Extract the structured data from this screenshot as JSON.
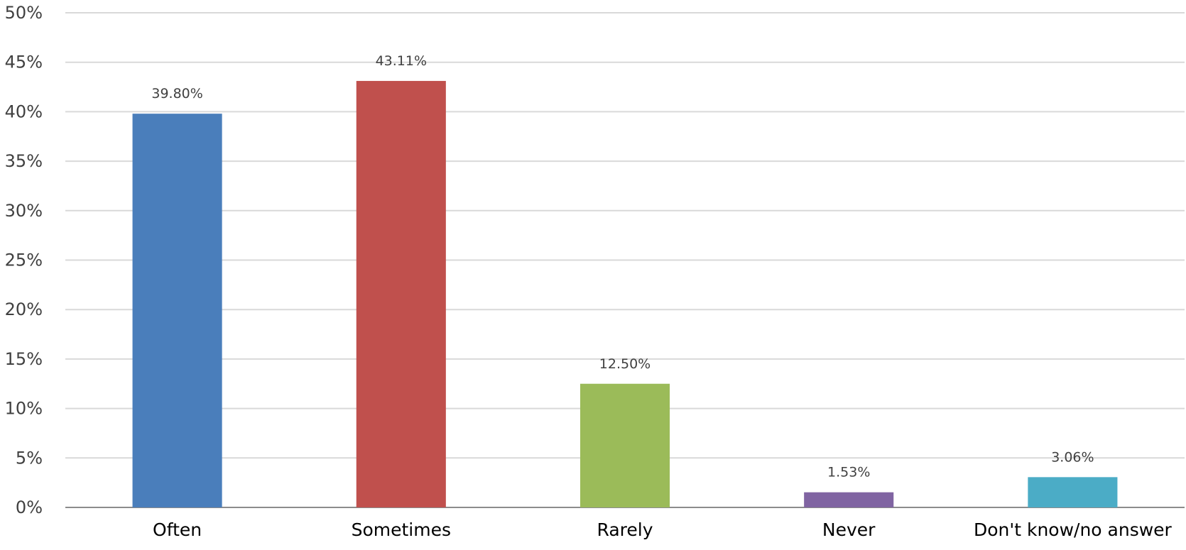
{
  "chart_data": {
    "type": "bar",
    "categories": [
      "Often",
      "Sometimes",
      "Rarely",
      "Never",
      "Don't know/no answer"
    ],
    "values": [
      39.8,
      43.11,
      12.5,
      1.53,
      3.06
    ],
    "data_labels": [
      "39.80%",
      "43.11%",
      "12.50%",
      "1.53%",
      "3.06%"
    ],
    "colors": [
      "#4a7ebb",
      "#c0504d",
      "#9bbb59",
      "#8064a2",
      "#4bacc6"
    ],
    "ylim": [
      0,
      50
    ],
    "yticks": [
      0,
      5,
      10,
      15,
      20,
      25,
      30,
      35,
      40,
      45,
      50
    ],
    "ytick_labels": [
      "0%",
      "5%",
      "10%",
      "15%",
      "20%",
      "25%",
      "30%",
      "35%",
      "40%",
      "45%",
      "50%"
    ],
    "title": "",
    "xlabel": "",
    "ylabel": "",
    "grid": true,
    "legend": "none"
  }
}
